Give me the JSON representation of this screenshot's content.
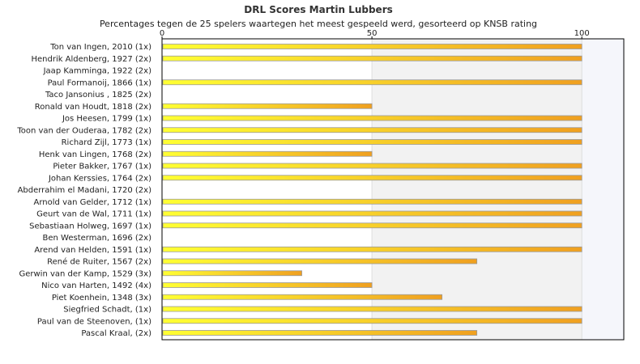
{
  "chart_data": {
    "type": "bar",
    "orientation": "horizontal",
    "title": "DRL Scores Martin Lubbers",
    "subtitle": "Percentages tegen de 25 spelers waartegen het meest gespeeld werd, gesorteerd op KNSB rating",
    "xlim": [
      0,
      110
    ],
    "xticks": [
      "0",
      "50",
      "100"
    ],
    "categories": [
      "Ton van Ingen, 2010 (1x)",
      "Hendrik Aldenberg, 1927 (2x)",
      "Jaap Kamminga, 1922 (2x)",
      "Paul Formanoij, 1866 (1x)",
      "Taco Jansonius , 1825 (2x)",
      "Ronald van Houdt, 1818 (2x)",
      "Jos Heesen, 1799 (1x)",
      "Toon van der Ouderaa, 1782 (2x)",
      "Richard Zijl, 1773 (1x)",
      "Henk van Lingen, 1768 (2x)",
      "Pieter Bakker, 1767 (1x)",
      "Johan Kerssies, 1764 (2x)",
      "Abderrahim el Madani, 1720 (2x)",
      "Arnold van Gelder, 1712 (1x)",
      "Geurt van de Wal, 1711 (1x)",
      "Sebastiaan Holweg, 1697 (1x)",
      "Ben Westerman, 1696 (2x)",
      "Arend van Helden, 1591 (1x)",
      "René de Ruiter, 1567 (2x)",
      "Gerwin van der Kamp, 1529 (3x)",
      "Nico van Harten, 1492 (4x)",
      "Piet Koenhein, 1348 (3x)",
      "Siegfried Schadt,  (1x)",
      "Paul van de Steenoven,  (1x)",
      "Pascal Kraal,  (2x)"
    ],
    "values": [
      100,
      100,
      0,
      100,
      0,
      50,
      100,
      100,
      100,
      50,
      100,
      100,
      0,
      100,
      100,
      100,
      0,
      100,
      75,
      33.3,
      50,
      66.7,
      100,
      100,
      75
    ],
    "grid": true,
    "bar_colors": {
      "start": "#ffff33",
      "end": "#f0a020"
    },
    "band_colors": [
      "#ffffff",
      "#f2f2f2",
      "#f5f6fb"
    ]
  }
}
